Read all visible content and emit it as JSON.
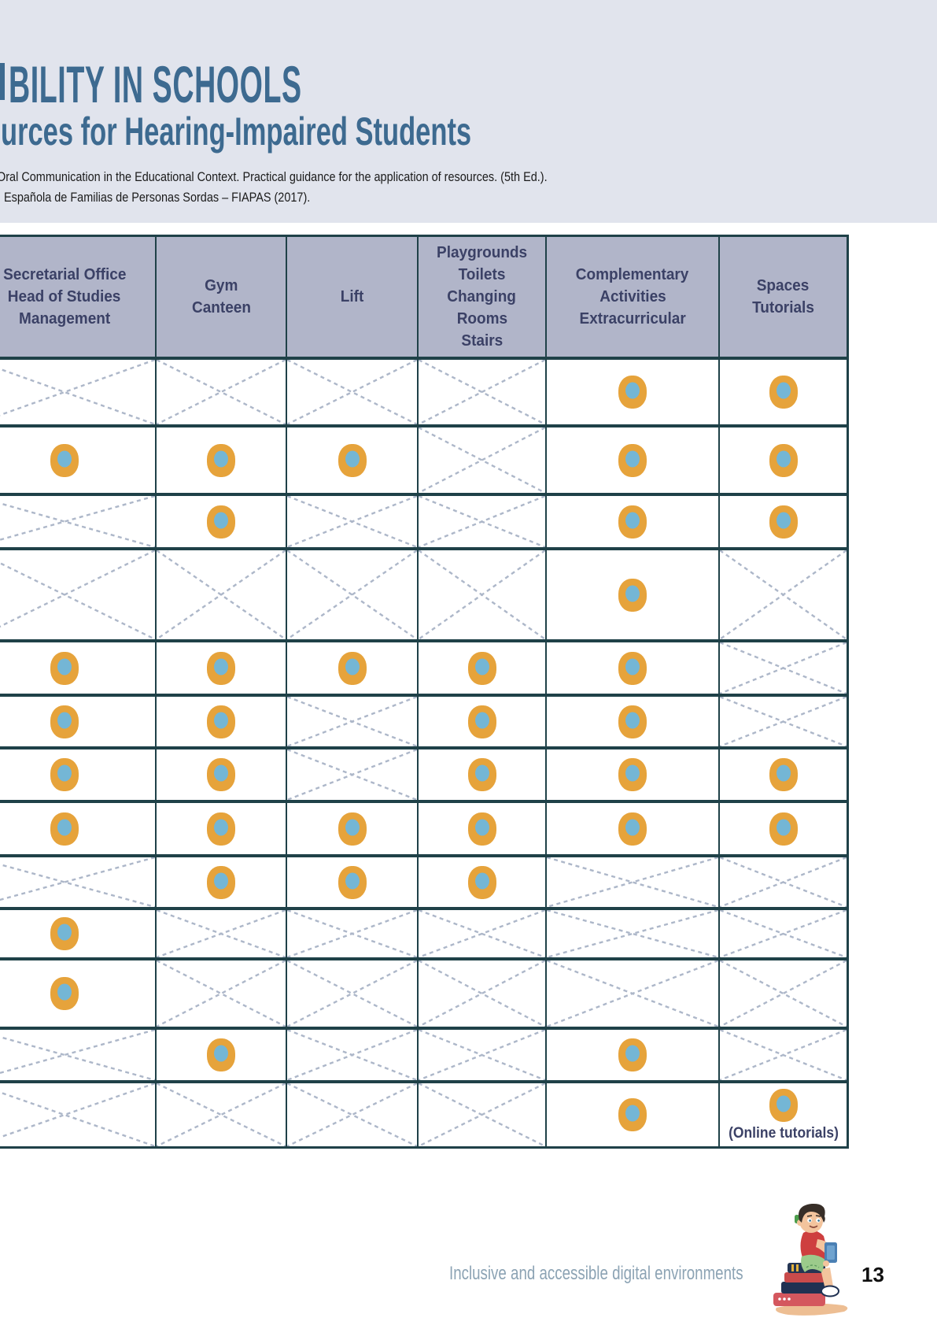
{
  "header": {
    "title_line1": "BILITY IN SCHOOLS",
    "title_line2": "urces for Hearing-Impaired Students",
    "citation_line1": "Oral Communication in the Educational Context. Practical guidance for the application of resources. (5th Ed.).",
    "citation_line2": "Española de Familias de Personas Sordas – FIAPAS (2017)."
  },
  "table": {
    "columns": [
      {
        "lines": [
          "Secretarial Office",
          "Head of Studies",
          "Management"
        ]
      },
      {
        "lines": [
          "Gym",
          "Canteen"
        ]
      },
      {
        "lines": [
          "Lift"
        ]
      },
      {
        "lines": [
          "Playgrounds",
          "Toilets",
          "Changing",
          "Rooms",
          "Stairs"
        ]
      },
      {
        "lines": [
          "Complementary",
          "Activities",
          "Extracurricular"
        ]
      },
      {
        "lines": [
          "Spaces",
          "Tutorials"
        ]
      }
    ],
    "rows": [
      [
        "x",
        "x",
        "x",
        "x",
        "dot",
        "dot"
      ],
      [
        "dot",
        "dot",
        "dot",
        "x",
        "dot",
        "dot"
      ],
      [
        "x",
        "dot",
        "x",
        "x",
        "dot",
        "dot"
      ],
      [
        "x",
        "x",
        "x",
        "x",
        "dot",
        "x"
      ],
      [
        "dot",
        "dot",
        "dot",
        "dot",
        "dot",
        "x"
      ],
      [
        "dot",
        "dot",
        "x",
        "dot",
        "dot",
        "x"
      ],
      [
        "dot",
        "dot",
        "x",
        "dot",
        "dot",
        "dot"
      ],
      [
        "dot",
        "dot",
        "dot",
        "dot",
        "dot",
        "dot"
      ],
      [
        "x",
        "dot",
        "dot",
        "dot",
        "x",
        "x"
      ],
      [
        "dot",
        "x",
        "x",
        "x",
        "x",
        "x"
      ],
      [
        "dot",
        "x",
        "x",
        "x",
        "x",
        "x"
      ],
      [
        "x",
        "dot",
        "x",
        "x",
        "dot",
        "x"
      ],
      [
        "x",
        "x",
        "x",
        "x",
        "dot",
        "dot_note"
      ]
    ],
    "online_tutorials_label": "(Online tutorials)"
  },
  "footer": {
    "tagline": "Inclusive and accessible digital environments",
    "page_number": "13"
  },
  "colors": {
    "banner_bg": "#E1E4ED",
    "title_blue": "#3D6A90",
    "table_header_bg": "#B1B5C9",
    "table_header_text": "#3B4166",
    "table_border": "#1F4148",
    "cross_line": "#ADB7C9",
    "marker_orange": "#E6A33B",
    "marker_blue": "#74B6D5",
    "footer_text": "#8CA3B4"
  }
}
